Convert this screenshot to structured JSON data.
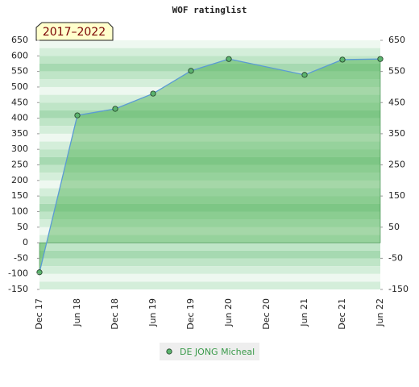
{
  "chart_data": {
    "type": "area",
    "title": "WOF ratinglist",
    "annotation": "2017–2022",
    "categories": [
      "Dec 17",
      "Jun 18",
      "Dec 18",
      "Jun 19",
      "Dec 19",
      "Jun 20",
      "Dec 20",
      "Jun 21",
      "Dec 21",
      "Jun 22"
    ],
    "series": [
      {
        "name": "DE JONG Micheal",
        "color": "#5b9bd5",
        "values": [
          -95,
          409,
          430,
          479,
          552,
          590,
          null,
          539,
          588,
          590
        ]
      }
    ],
    "ylim": [
      -150,
      650
    ],
    "yticks": [
      -150,
      -100,
      -50,
      0,
      50,
      100,
      150,
      200,
      250,
      300,
      350,
      400,
      450,
      500,
      550,
      600,
      650
    ],
    "y2lim": [
      -150,
      650
    ],
    "y2ticks": [
      -150,
      -50,
      50,
      150,
      250,
      350,
      450,
      550,
      650
    ]
  }
}
